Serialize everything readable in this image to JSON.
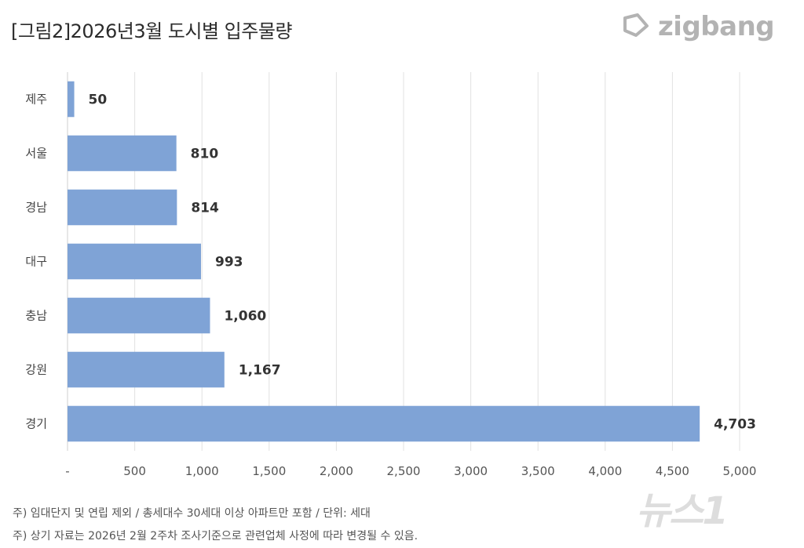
{
  "header": {
    "title": "[그림2]2026년3월 도시별 입주물량",
    "logo_text": "zigbang",
    "logo_icon": "zigbang-logo-icon"
  },
  "chart_data": {
    "type": "bar",
    "orientation": "horizontal",
    "categories": [
      "제주",
      "서울",
      "경남",
      "대구",
      "충남",
      "강원",
      "경기"
    ],
    "values": [
      50,
      810,
      814,
      993,
      1060,
      1167,
      4703
    ],
    "value_labels": [
      "50",
      "810",
      "814",
      "993",
      "1,060",
      "1,167",
      "4,703"
    ],
    "x_ticks": [
      "-",
      "500",
      "1,000",
      "1,500",
      "2,000",
      "2,500",
      "3,000",
      "3,500",
      "4,000",
      "4,500",
      "5,000"
    ],
    "xlim": [
      0,
      5000
    ],
    "grid": true,
    "bar_color": "#7fa3d6",
    "title": "[그림2]2026년3월 도시별 입주물량"
  },
  "footer": {
    "note1": "주) 임대단지 및 연립 제외 / 총세대수 30세대 이상 아파트만 포함 / 단위: 세대",
    "note2": "주) 상기 자료는 2026년 2월 2주차 조사기준으로 관련업체 사정에 따라 변경될 수 있음.",
    "watermark": "뉴스1"
  }
}
